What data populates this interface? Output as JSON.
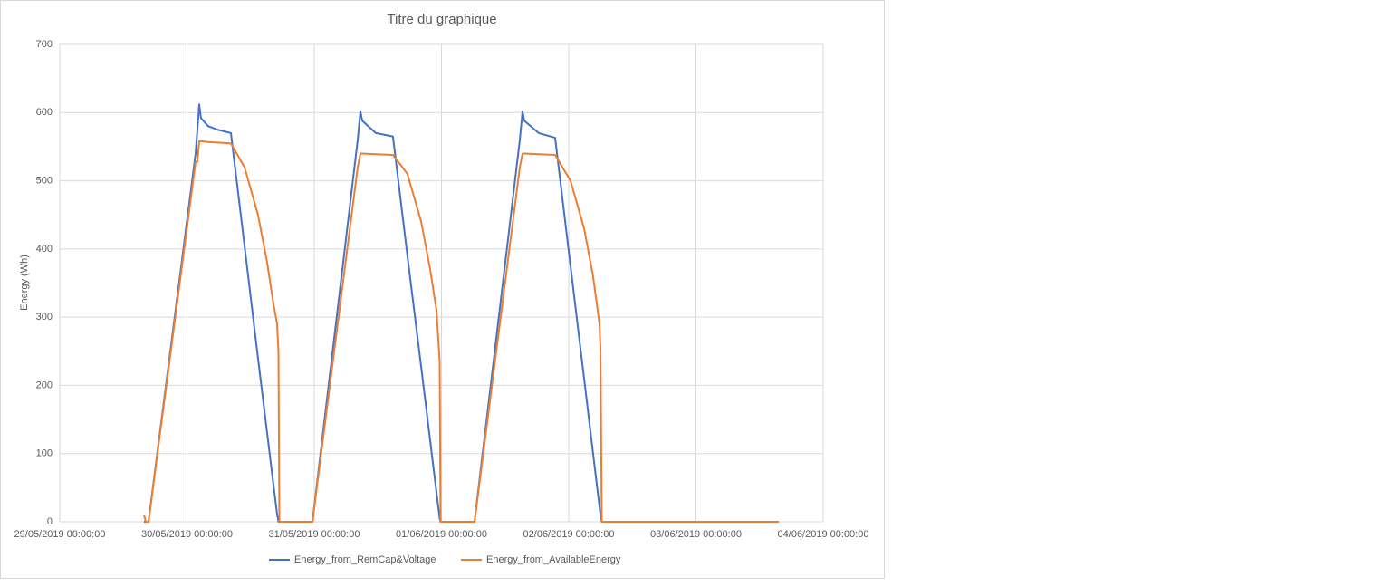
{
  "chart_data": {
    "type": "line",
    "title": "Titre du graphique",
    "y_label": "Energy (Wh)",
    "x": [
      "2019-05-29 15:53",
      "2019-05-29 16:14",
      "2019-05-29 16:44",
      "2019-05-30 01:37",
      "2019-05-30 01:58",
      "2019-05-30 02:18",
      "2019-05-30 02:38",
      "2019-05-30 04:00",
      "2019-05-30 05:43",
      "2019-05-30 08:17",
      "2019-05-30 10:51",
      "2019-05-30 13:24",
      "2019-05-30 15:07",
      "2019-05-30 16:18",
      "2019-05-30 17:00",
      "2019-05-30 17:15",
      "2019-05-30 17:25",
      "2019-05-30 23:40",
      "2019-05-31 08:12",
      "2019-05-31 08:43",
      "2019-05-31 09:03",
      "2019-05-31 11:37",
      "2019-05-31 14:51",
      "2019-05-31 17:35",
      "2019-05-31 20:10",
      "2019-05-31 21:52",
      "2019-05-31 23:04",
      "2019-05-31 23:40",
      "2019-05-31 23:50",
      "2019-06-01 06:14",
      "2019-06-01 14:47",
      "2019-06-01 15:17",
      "2019-06-01 15:37",
      "2019-06-01 18:21",
      "2019-06-01 21:26",
      "2019-06-02 00:20",
      "2019-06-02 02:54",
      "2019-06-02 04:36",
      "2019-06-02 05:48",
      "2019-06-02 06:00",
      "2019-06-02 06:14",
      "2019-06-03 15:37"
    ],
    "series": [
      {
        "name": "Energy_from_RemCap&Voltage",
        "color": "#4472c4",
        "values": [
          0,
          0,
          0,
          540,
          575,
          612,
          592,
          580,
          575,
          570,
          405,
          240,
          130,
          55,
          11,
          0,
          0,
          0,
          560,
          602,
          588,
          570,
          565,
          390,
          227,
          119,
          43,
          5,
          0,
          0,
          560,
          602,
          588,
          570,
          563,
          375,
          210,
          100,
          22,
          10,
          0,
          0
        ]
      },
      {
        "name": "Energy_from_AvailableEnergy",
        "color": "#ed7d31",
        "values": [
          10,
          0,
          0,
          528,
          528,
          558,
          558,
          557,
          556,
          555,
          520,
          450,
          380,
          320,
          290,
          250,
          0,
          0,
          520,
          540,
          540,
          539,
          538,
          510,
          440,
          370,
          310,
          235,
          0,
          0,
          520,
          540,
          540,
          539,
          538,
          500,
          430,
          360,
          290,
          250,
          0,
          0
        ]
      }
    ],
    "xlim": [
      "2019-05-29 00:00",
      "2019-06-04 00:00"
    ],
    "xticks": [
      {
        "value": "2019-05-29 00:00",
        "label": "29/05/2019 00:00:00"
      },
      {
        "value": "2019-05-30 00:00",
        "label": "30/05/2019 00:00:00"
      },
      {
        "value": "2019-05-31 00:00",
        "label": "31/05/2019 00:00:00"
      },
      {
        "value": "2019-06-01 00:00",
        "label": "01/06/2019 00:00:00"
      },
      {
        "value": "2019-06-02 00:00",
        "label": "02/06/2019 00:00:00"
      },
      {
        "value": "2019-06-03 00:00",
        "label": "03/06/2019 00:00:00"
      },
      {
        "value": "2019-06-04 00:00",
        "label": "04/06/2019 00:00:00"
      }
    ],
    "ylim": [
      0,
      700
    ],
    "yticks": [
      0,
      100,
      200,
      300,
      400,
      500,
      600,
      700
    ],
    "grid": true,
    "legend": "bottom"
  }
}
